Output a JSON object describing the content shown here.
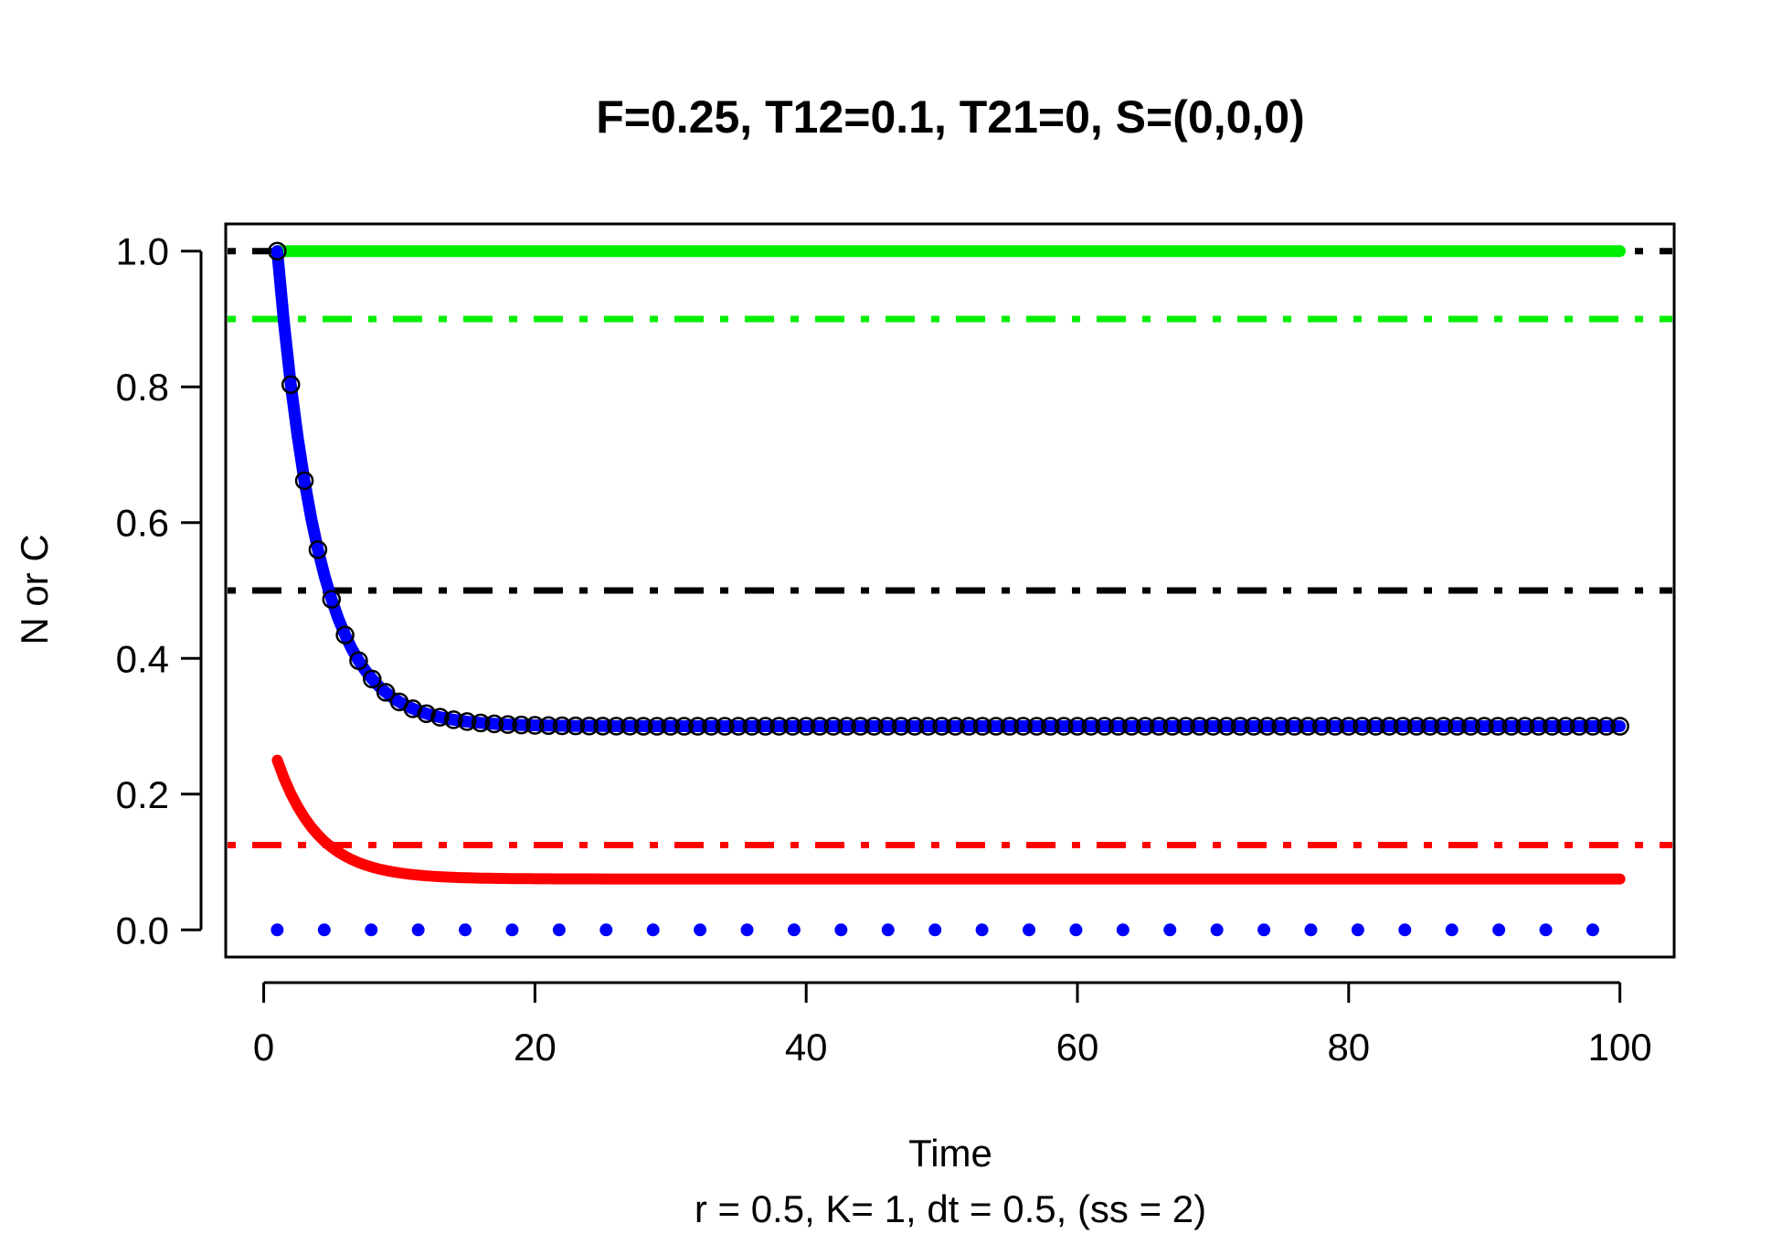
{
  "chart_data": {
    "type": "line",
    "title": "F=0.25, T12=0.1, T21=0, S=(0,0,0)",
    "xlabel": "Time",
    "subtitle": "r = 0.5, K= 1, dt = 0.5, (ss = 2)",
    "ylabel": "N or C",
    "xlim": [
      -2.8,
      104
    ],
    "ylim": [
      -0.04,
      1.04
    ],
    "x_ticks": [
      "0",
      "20",
      "40",
      "60",
      "80",
      "100"
    ],
    "y_ticks": [
      "0.0",
      "0.2",
      "0.4",
      "0.6",
      "0.8",
      "1.0"
    ],
    "x_tick_values": [
      0,
      20,
      40,
      60,
      80,
      100
    ],
    "y_tick_values": [
      0,
      0.2,
      0.4,
      0.6,
      0.8,
      1.0
    ],
    "grid": false,
    "series": [
      {
        "color": "#0000ff",
        "style": "solid",
        "x_range": [
          1,
          100
        ],
        "start": 1.0,
        "end": 0.3
      },
      {
        "color": "#000000",
        "style": "circles",
        "x_range": [
          1,
          100
        ],
        "start": 1.0,
        "end": 0.3
      },
      {
        "color": "#ff0000",
        "style": "solid",
        "x_range": [
          1,
          100
        ],
        "start": 0.25,
        "end": 0.075
      },
      {
        "color": "#00ee00",
        "style": "solid",
        "x_range": [
          1,
          100
        ],
        "value": 1.0
      },
      {
        "color": "#0000ff",
        "style": "dotted",
        "x_range": [
          1,
          100
        ],
        "value": 0.0
      }
    ],
    "reference_lines": [
      {
        "color": "#000000",
        "style": "dotdash",
        "y": 1.0
      },
      {
        "color": "#00ee00",
        "style": "dotdash",
        "y": 0.9
      },
      {
        "color": "#000000",
        "style": "dotdash",
        "y": 0.5
      },
      {
        "color": "#ff0000",
        "style": "dotdash",
        "y": 0.125
      }
    ]
  }
}
